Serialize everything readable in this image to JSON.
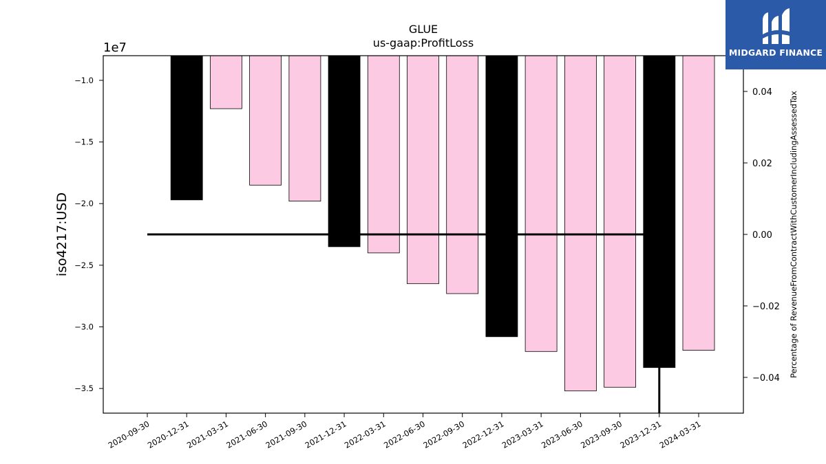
{
  "chart_data": {
    "type": "bar",
    "title": "GLUE",
    "subtitle": "us-gaap:ProfitLoss",
    "ylabel": "iso4217:USD",
    "y_offset_label": "1e7",
    "y2label": "Percentage of RevenueFromContractWithCustomerIncludingAssessedTax",
    "ylim": [
      -37000000,
      -8000000
    ],
    "y2lim": [
      -0.05,
      0.05
    ],
    "y_ticks": [
      -10000000,
      -15000000,
      -20000000,
      -25000000,
      -30000000,
      -35000000
    ],
    "y_tick_labels": [
      "−1.0",
      "−1.5",
      "−2.0",
      "−2.5",
      "−3.0",
      "−3.5"
    ],
    "y2_ticks": [
      0.04,
      0.02,
      0.0,
      -0.02,
      -0.04
    ],
    "y2_tick_labels": [
      "0.04",
      "0.02",
      "0.00",
      "−0.02",
      "−0.04"
    ],
    "categories": [
      "2020-09-30",
      "2020-12-31",
      "2021-03-31",
      "2021-06-30",
      "2021-09-30",
      "2021-12-31",
      "2022-03-31",
      "2022-06-30",
      "2022-09-30",
      "2022-12-31",
      "2023-03-31",
      "2023-06-30",
      "2023-09-30",
      "2023-12-31",
      "2024-03-31"
    ],
    "values": [
      null,
      -19700000,
      -12300000,
      -18500000,
      -19800000,
      -23500000,
      -24000000,
      -26500000,
      -27300000,
      -30800000,
      -32000000,
      -35200000,
      -34900000,
      -33300000,
      -31900000
    ],
    "bar_colors": [
      null,
      "#000000",
      "#fccae3",
      "#fccae3",
      "#fccae3",
      "#000000",
      "#fccae3",
      "#fccae3",
      "#fccae3",
      "#000000",
      "#fccae3",
      "#fccae3",
      "#fccae3",
      "#000000",
      "#fccae3"
    ],
    "line_series": {
      "axis": "secondary",
      "x": [
        "2020-09-30",
        "2023-12-31",
        "2023-12-31"
      ],
      "y": [
        0.0,
        0.0,
        -0.05
      ],
      "color": "#000000"
    }
  },
  "logo": {
    "text": "MIDGARD FINANCE",
    "background": "#2a5aa8"
  }
}
